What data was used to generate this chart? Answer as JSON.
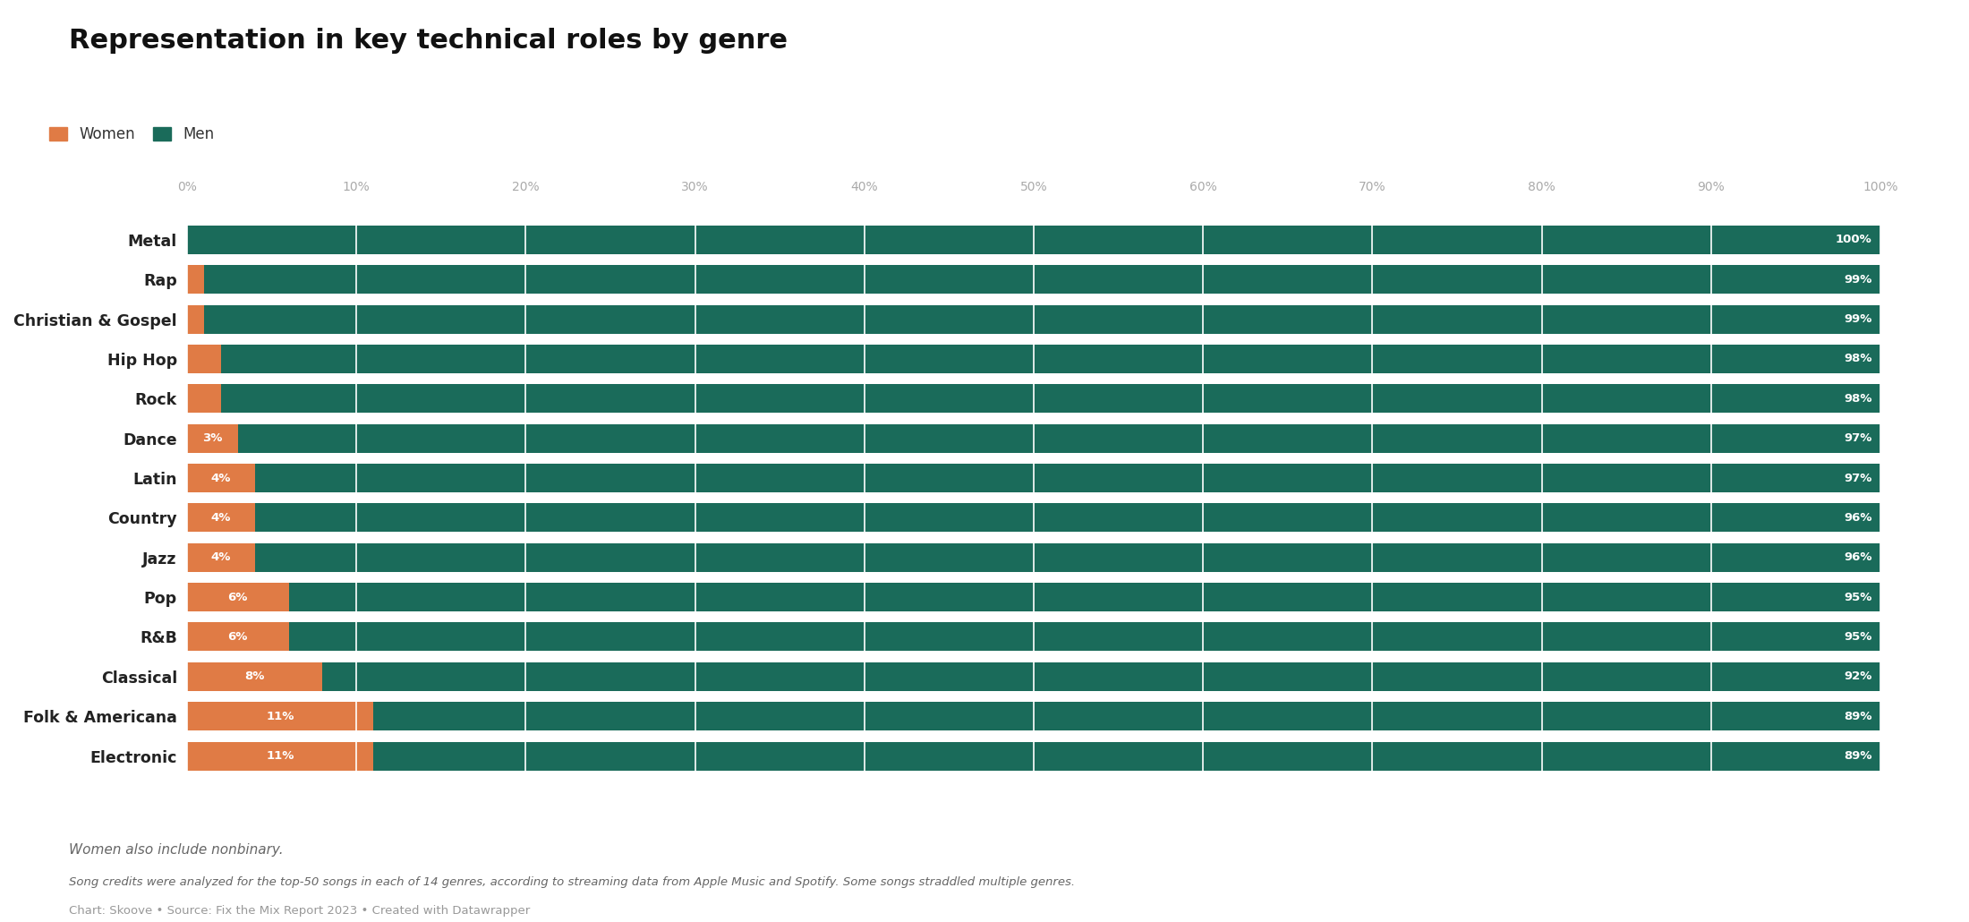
{
  "title": "Representation in key technical roles by genre",
  "categories": [
    "Metal",
    "Rap",
    "Christian & Gospel",
    "Hip Hop",
    "Rock",
    "Dance",
    "Latin",
    "Country",
    "Jazz",
    "Pop",
    "R&B",
    "Classical",
    "Folk & Americana",
    "Electronic"
  ],
  "women_pct": [
    0,
    1,
    1,
    2,
    2,
    3,
    4,
    4,
    4,
    6,
    6,
    8,
    11,
    11
  ],
  "men_pct": [
    100,
    99,
    99,
    98,
    98,
    97,
    97,
    96,
    96,
    95,
    95,
    92,
    89,
    89
  ],
  "women_label": [
    "",
    "",
    "",
    "",
    "",
    "3%",
    "4%",
    "4%",
    "4%",
    "6%",
    "6%",
    "8%",
    "11%",
    "11%"
  ],
  "men_label": [
    "100%",
    "99%",
    "99%",
    "98%",
    "98%",
    "97%",
    "97%",
    "96%",
    "96%",
    "95%",
    "95%",
    "92%",
    "89%",
    "89%"
  ],
  "women_color": "#E07B45",
  "men_color": "#1A6B5A",
  "background_color": "#FFFFFF",
  "legend_women": "Women",
  "legend_men": "Men",
  "footnote1": "Women also include nonbinary.",
  "footnote2": "Song credits were analyzed for the top-50 songs in each of 14 genres, according to streaming data from Apple Music and Spotify. Some songs straddled multiple genres.",
  "footnote3": "Chart: Skoove • Source: Fix the Mix Report 2023 • Created with Datawrapper",
  "xlabel_ticks": [
    "0%",
    "10%",
    "20%",
    "30%",
    "40%",
    "50%",
    "60%",
    "70%",
    "80%",
    "90%",
    "100%"
  ],
  "xtick_vals": [
    0,
    10,
    20,
    30,
    40,
    50,
    60,
    70,
    80,
    90,
    100
  ]
}
